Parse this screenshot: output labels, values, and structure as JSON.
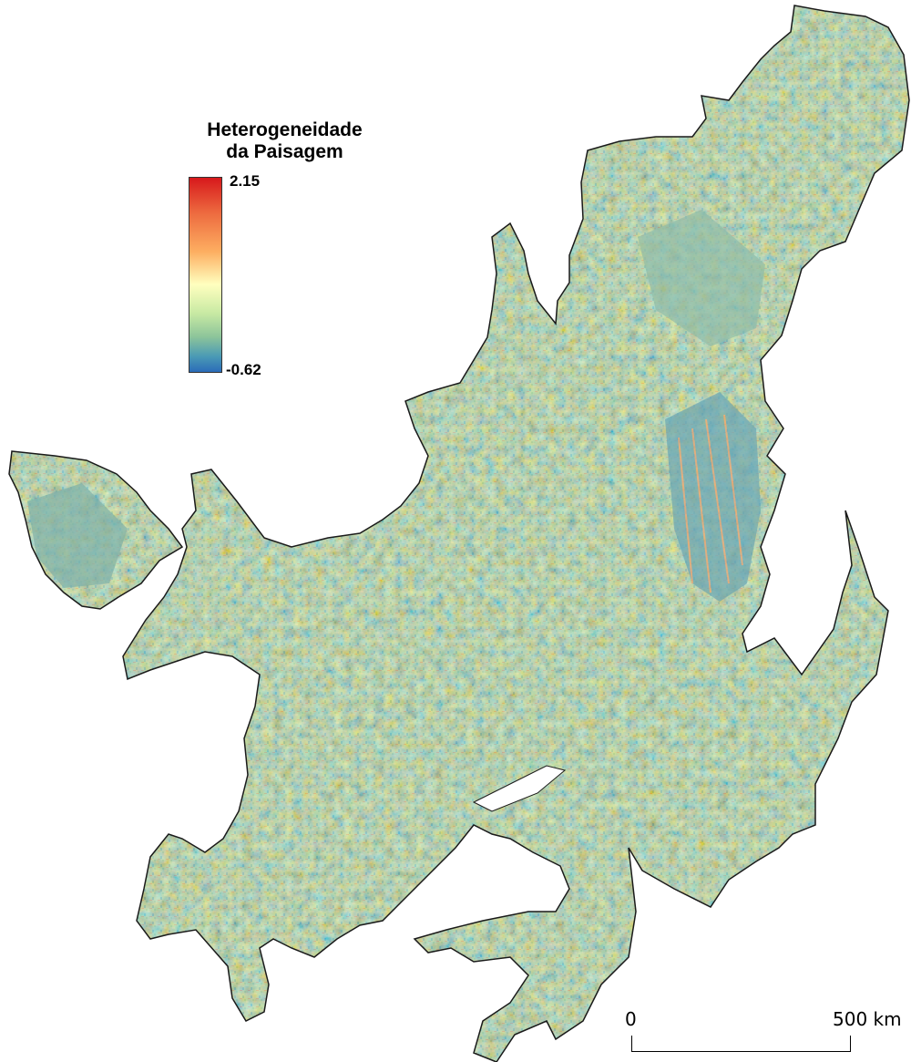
{
  "legend": {
    "title_line1": "Heterogeneidade",
    "title_line2": "da Paisagem",
    "max_label": "2.15",
    "min_label": "-0.62",
    "max_value": 2.15,
    "min_value": -0.62,
    "ramp_colors": [
      "#d7191c",
      "#fdae61",
      "#ffffbf",
      "#abdda4",
      "#2b83ba"
    ]
  },
  "scale_bar": {
    "start_label": "0",
    "end_label": "500 km"
  },
  "map": {
    "base_fill": "#b8cf99",
    "outline_color": "#1a1a1a"
  }
}
